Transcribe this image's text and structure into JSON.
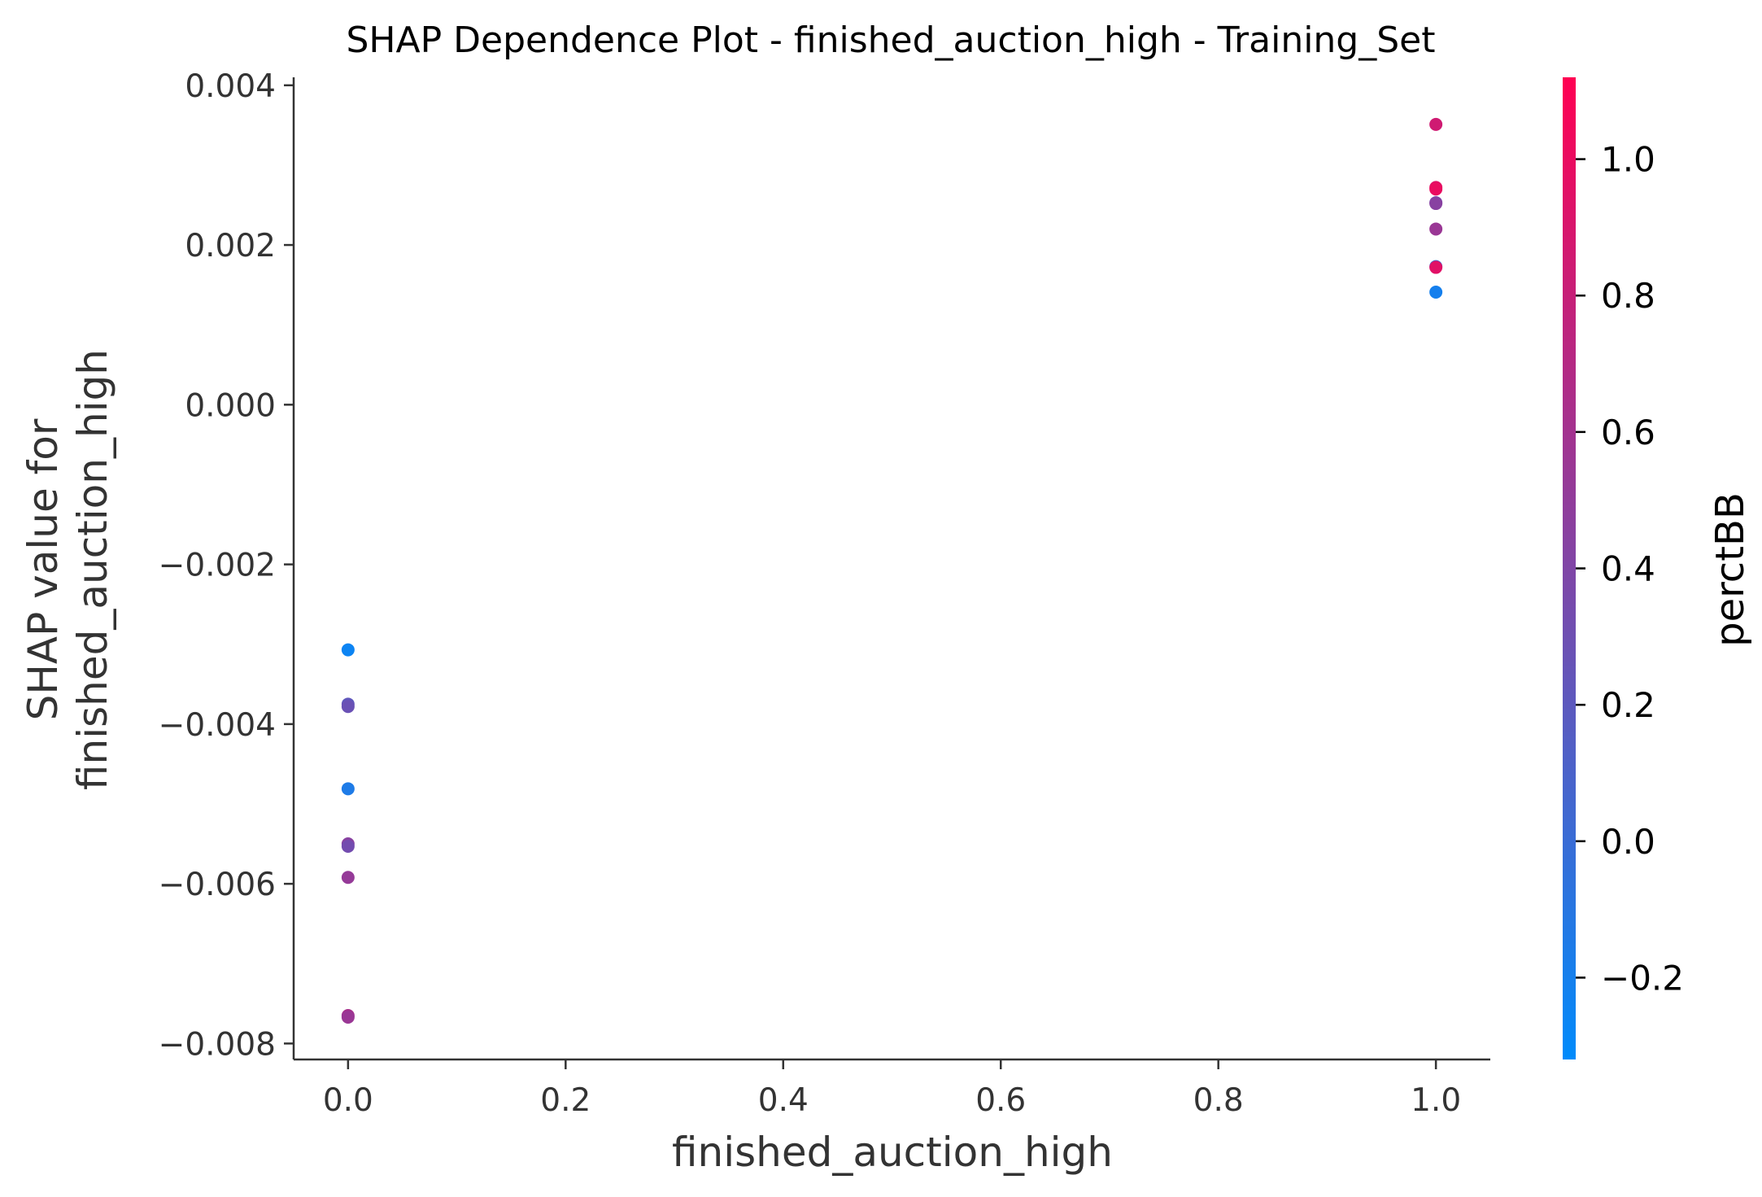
{
  "chart_data": {
    "type": "scatter",
    "title": "SHAP Dependence Plot - finished_auction_high - Training_Set",
    "xlabel": "finished_auction_high",
    "ylabel_lines": [
      "SHAP value for",
      "finished_auction_high"
    ],
    "xlim": [
      -0.05,
      1.05
    ],
    "ylim": [
      -0.0082,
      0.0041
    ],
    "x_ticks": [
      0.0,
      0.2,
      0.4,
      0.6,
      0.8,
      1.0
    ],
    "x_tick_labels": [
      "0.0",
      "0.2",
      "0.4",
      "0.6",
      "0.8",
      "1.0"
    ],
    "y_ticks": [
      -0.008,
      -0.006,
      -0.004,
      -0.002,
      0.0,
      0.002,
      0.004
    ],
    "y_tick_labels": [
      "−0.008",
      "−0.006",
      "−0.004",
      "−0.002",
      "0.000",
      "0.002",
      "0.004"
    ],
    "grid": false,
    "colorbar": {
      "label": "perctBB",
      "range": [
        -0.32,
        1.12
      ],
      "ticks": [
        -0.2,
        0.0,
        0.2,
        0.4,
        0.6,
        0.8,
        1.0
      ],
      "tick_labels": [
        "−0.2",
        "0.0",
        "0.2",
        "0.4",
        "0.6",
        "0.8",
        "1.0"
      ],
      "colormap": [
        "#008bfb",
        "#ff0052"
      ]
    },
    "points": [
      {
        "x": 0.0,
        "y": -0.00307,
        "c": -0.25
      },
      {
        "x": 0.0,
        "y": -0.00375,
        "c": 0.22
      },
      {
        "x": 0.0,
        "y": -0.00378,
        "c": 0.28
      },
      {
        "x": 0.0,
        "y": -0.00481,
        "c": -0.15
      },
      {
        "x": 0.0,
        "y": -0.0055,
        "c": 0.45
      },
      {
        "x": 0.0,
        "y": -0.00553,
        "c": 0.33
      },
      {
        "x": 0.0,
        "y": -0.00592,
        "c": 0.52
      },
      {
        "x": 0.0,
        "y": -0.00765,
        "c": 0.62
      },
      {
        "x": 0.0,
        "y": -0.00767,
        "c": 0.55
      },
      {
        "x": 1.0,
        "y": 0.00351,
        "c": 0.85
      },
      {
        "x": 1.0,
        "y": 0.00272,
        "c": 0.95
      },
      {
        "x": 1.0,
        "y": 0.0027,
        "c": 1.0
      },
      {
        "x": 1.0,
        "y": 0.00253,
        "c": 0.35
      },
      {
        "x": 1.0,
        "y": 0.00252,
        "c": 0.45
      },
      {
        "x": 1.0,
        "y": 0.0022,
        "c": 0.55
      },
      {
        "x": 1.0,
        "y": 0.00173,
        "c": 0.05
      },
      {
        "x": 1.0,
        "y": 0.00172,
        "c": 0.95
      },
      {
        "x": 1.0,
        "y": 0.00141,
        "c": -0.2
      }
    ]
  }
}
